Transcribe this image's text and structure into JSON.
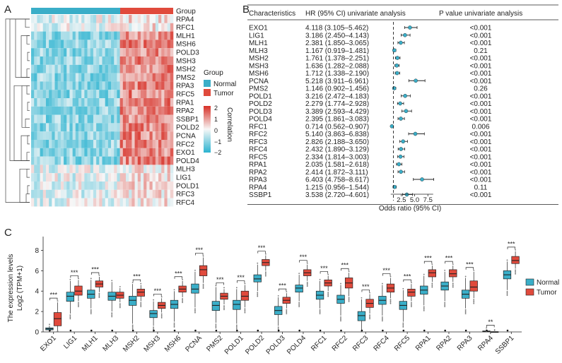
{
  "panel_labels": {
    "a": "A",
    "b": "B",
    "c": "C"
  },
  "heatmap": {
    "group_label": "Group",
    "genes": [
      "RPA4",
      "RFC1",
      "MLH1",
      "MSH6",
      "POLD3",
      "MSH3",
      "MSH2",
      "PMS2",
      "RPA3",
      "RFC5",
      "RPA1",
      "RPA2",
      "SSBP1",
      "POLD2",
      "PCNA",
      "RFC2",
      "EXO1",
      "POLD4",
      "MLH3",
      "LIG1",
      "POLD1",
      "RFC3",
      "RFC4"
    ],
    "legend_group_title": "Group",
    "legend_group_items": [
      {
        "label": "Normal",
        "color": "#3aaec8"
      },
      {
        "label": "Tumor",
        "color": "#e04a3c"
      }
    ],
    "colorbar_title": "Correlation",
    "colorbar_ticks": [
      "2",
      "1",
      "0",
      "−1",
      "−2"
    ],
    "colors": {
      "high": "#d73027",
      "mid": "#f7f7f7",
      "low": "#2bb3d0"
    }
  },
  "forest": {
    "header_characteristics": "Characteristics",
    "header_hr": "HR (95% CI) univariate analysis",
    "header_p": "P value univariate analysis",
    "xlabel": "Odds ratio (95% CI)",
    "xticks": [
      "2.5",
      "5.0",
      "7.5"
    ],
    "rows": [
      {
        "gene": "EXO1",
        "hr_text": "4.118 (3.105–5.462)",
        "p": "<0.001"
      },
      {
        "gene": "LIG1",
        "hr_text": "3.186 (2.450–4.143)",
        "p": "<0.001"
      },
      {
        "gene": "MLH1",
        "hr_text": "2.381 (1.850–3.065)",
        "p": "<0.001"
      },
      {
        "gene": "MLH3",
        "hr_text": "1.167 (0.919–1.481)",
        "p": "0.21"
      },
      {
        "gene": "MSH2",
        "hr_text": "1.761 (1.378–2.251)",
        "p": "<0.001"
      },
      {
        "gene": "MSH3",
        "hr_text": "1.636 (1.282–2.088)",
        "p": "<0.001"
      },
      {
        "gene": "MSH6",
        "hr_text": "1.712 (1.338–2.190)",
        "p": "<0.001"
      },
      {
        "gene": "PCNA",
        "hr_text": "5.218 (3.911–6.961)",
        "p": "<0.001"
      },
      {
        "gene": "PMS2",
        "hr_text": "1.146 (0.902–1.456)",
        "p": "0.26"
      },
      {
        "gene": "POLD1",
        "hr_text": "3.216 (2.472–4.183)",
        "p": "<0.001"
      },
      {
        "gene": "POLD2",
        "hr_text": "2.279 (1.774–2.928)",
        "p": "<0.001"
      },
      {
        "gene": "POLD3",
        "hr_text": "3.389 (2.593–4.429)",
        "p": "<0.001"
      },
      {
        "gene": "POLD4",
        "hr_text": "2.395 (1.861–3.083)",
        "p": "<0.001"
      },
      {
        "gene": "RFC1",
        "hr_text": "0.714 (0.562–0.907)",
        "p": "0.006"
      },
      {
        "gene": "RFC2",
        "hr_text": "5.140 (3.863–6.838)",
        "p": "<0.001"
      },
      {
        "gene": "RFC3",
        "hr_text": "2.826 (2.188–3.650)",
        "p": "<0.001"
      },
      {
        "gene": "RFC4",
        "hr_text": "2.432 (1.890–3.129)",
        "p": "<0.001"
      },
      {
        "gene": "RFC5",
        "hr_text": "2.334 (1.814–3.003)",
        "p": "<0.001"
      },
      {
        "gene": "RPA1",
        "hr_text": "2.035 (1.581–2.618)",
        "p": "<0.001"
      },
      {
        "gene": "RPA2",
        "hr_text": "2.414 (1.872–3.111)",
        "p": "<0.001"
      },
      {
        "gene": "RPA3",
        "hr_text": "6.403 (4.758–8.617)",
        "p": "<0.001"
      },
      {
        "gene": "RPA4",
        "hr_text": "1.215 (0.956–1.544)",
        "p": "0.11"
      },
      {
        "gene": "SSBP1",
        "hr_text": "3.538 (2.720–4.601)",
        "p": "<0.001"
      }
    ]
  },
  "chart_data": {
    "type": "box",
    "title": "",
    "xlabel": "",
    "ylabel_line1": "The expression levels",
    "ylabel_line2": "Log2 (TPM+1)",
    "ylim": [
      0,
      9
    ],
    "yticks": [
      "0",
      "2",
      "4",
      "6",
      "8"
    ],
    "categories": [
      "EXO1",
      "LIG1",
      "MLH1",
      "MLH3",
      "MSH2",
      "MSH3",
      "MSH6",
      "PCNA",
      "PMS2",
      "POLD1",
      "POLD2",
      "POLD3",
      "POLD4",
      "RFC1",
      "RFC2",
      "RFC3",
      "RFC4",
      "RFC5",
      "RPA1",
      "RPA2",
      "RPA3",
      "RPA4",
      "SSBP1"
    ],
    "significance": [
      "***",
      "***",
      "***",
      "",
      "***",
      "***",
      "***",
      "***",
      "***",
      "***",
      "***",
      "***",
      "***",
      "***",
      "***",
      "***",
      "***",
      "***",
      "***",
      "***",
      "***",
      "**",
      "***"
    ],
    "legend": [
      {
        "name": "Normal",
        "color": "#3aaec8"
      },
      {
        "name": "Tumor",
        "color": "#e04a3c"
      }
    ],
    "series": [
      {
        "name": "Normal",
        "median": [
          0.3,
          3.5,
          3.7,
          3.5,
          3.1,
          1.8,
          2.7,
          4.2,
          2.6,
          2.7,
          5.2,
          2.1,
          4.3,
          3.6,
          3.2,
          1.6,
          3.1,
          2.6,
          4.1,
          4.5,
          3.7,
          0.05,
          5.6
        ],
        "q1": [
          0.2,
          3.0,
          3.3,
          3.1,
          2.6,
          1.4,
          2.3,
          3.8,
          2.1,
          2.2,
          4.9,
          1.7,
          3.9,
          3.2,
          2.8,
          1.1,
          2.7,
          2.2,
          3.7,
          4.1,
          3.3,
          0.02,
          5.2
        ],
        "q3": [
          0.4,
          3.9,
          4.1,
          3.9,
          3.5,
          2.1,
          3.1,
          4.7,
          3.0,
          3.1,
          5.6,
          2.5,
          4.6,
          4.0,
          3.6,
          2.0,
          3.5,
          3.0,
          4.5,
          4.9,
          4.1,
          0.1,
          6.0
        ],
        "whisker_low": [
          0.0,
          1.8,
          2.3,
          2.0,
          0.8,
          0.6,
          1.0,
          2.4,
          0.9,
          0.8,
          4.0,
          0.6,
          3.0,
          2.3,
          1.6,
          0.2,
          1.6,
          1.0,
          2.6,
          3.0,
          2.3,
          0.0,
          4.1
        ],
        "whisker_high": [
          0.6,
          5.0,
          5.1,
          4.9,
          4.7,
          3.0,
          4.0,
          5.9,
          4.4,
          4.2,
          6.6,
          3.4,
          5.6,
          5.0,
          4.6,
          3.2,
          4.6,
          4.1,
          5.5,
          5.9,
          5.3,
          0.25,
          6.9
        ]
      },
      {
        "name": "Tumor",
        "median": [
          1.3,
          4.0,
          4.7,
          3.6,
          3.9,
          2.6,
          4.2,
          6.1,
          3.5,
          3.5,
          6.8,
          3.1,
          5.8,
          4.8,
          4.8,
          2.8,
          4.3,
          3.9,
          5.8,
          5.7,
          4.4,
          0.0,
          7.0
        ],
        "q1": [
          0.6,
          3.6,
          4.4,
          3.3,
          3.5,
          2.3,
          3.9,
          5.5,
          3.2,
          3.1,
          6.5,
          2.8,
          5.5,
          4.5,
          4.3,
          2.4,
          3.9,
          3.5,
          5.4,
          5.4,
          4.0,
          0.0,
          6.7
        ],
        "q3": [
          1.9,
          4.5,
          5.0,
          3.9,
          4.2,
          2.9,
          4.5,
          6.5,
          3.8,
          4.0,
          7.1,
          3.4,
          6.1,
          5.1,
          5.3,
          3.2,
          4.7,
          4.2,
          6.1,
          6.1,
          5.0,
          0.03,
          7.4
        ],
        "whisker_low": [
          0.0,
          3.0,
          3.9,
          2.9,
          3.0,
          1.9,
          3.4,
          4.8,
          2.7,
          2.4,
          6.0,
          2.3,
          5.0,
          4.0,
          3.5,
          1.8,
          3.3,
          3.0,
          4.9,
          4.9,
          3.3,
          0.0,
          6.2
        ],
        "whisker_high": [
          2.9,
          5.1,
          5.4,
          4.3,
          4.6,
          3.3,
          5.0,
          7.3,
          4.2,
          4.6,
          7.5,
          3.8,
          6.6,
          5.5,
          5.8,
          3.7,
          5.3,
          4.7,
          6.5,
          6.5,
          5.9,
          0.08,
          7.9
        ]
      }
    ]
  }
}
